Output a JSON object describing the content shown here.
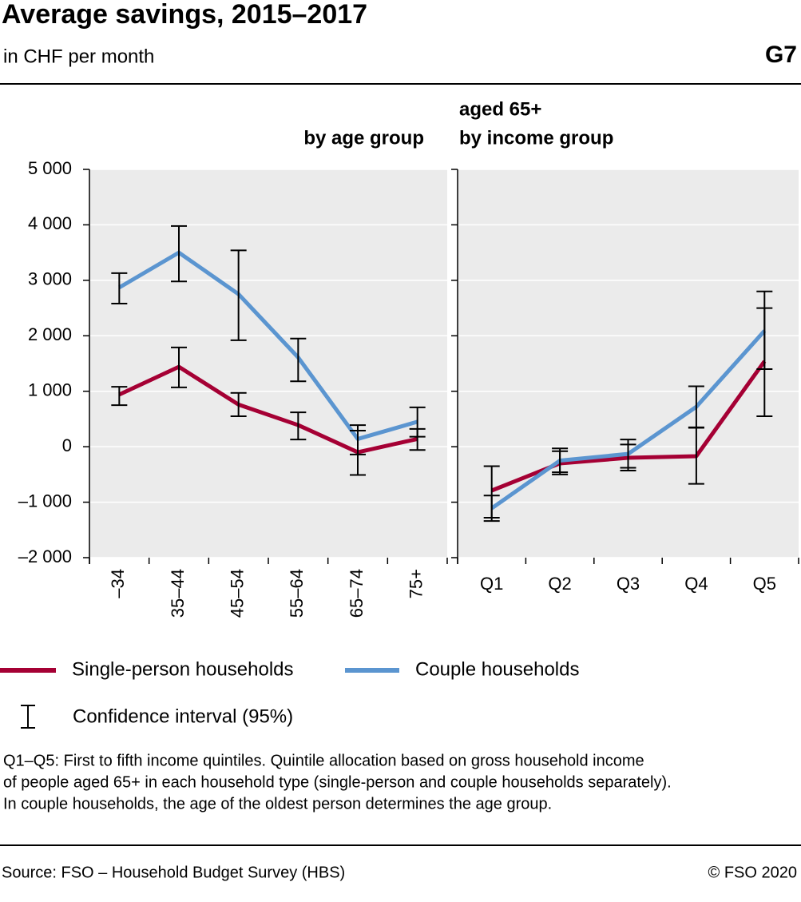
{
  "title": "Average savings, 2015–2017",
  "subtitle": "in CHF per month",
  "code": "G7",
  "ci_label": "Confidence interval (95%)",
  "notes": [
    "Q1–Q5: First to fifth income quintiles. Quintile allocation based on gross household income",
    "of people aged 65+ in each household type (single-person and couple households separately).",
    "In couple households, the age of the oldest person determines the age group."
  ],
  "source": "Source: FSO – Household Budget Survey (HBS)",
  "copyright": "© FSO 2020",
  "chart_data": [
    {
      "type": "line",
      "title_lines": [
        "by age group"
      ],
      "categories": [
        "–34",
        "35–44",
        "45–54",
        "55–64",
        "65–74",
        "75+"
      ],
      "ylim": [
        -2000,
        5000
      ],
      "yticks": [
        {
          "value": -2000,
          "label": "–2 000"
        },
        {
          "value": -1000,
          "label": "–1 000"
        },
        0,
        {
          "value": 1000,
          "label": "1 000"
        },
        {
          "value": 2000,
          "label": "2 000"
        },
        {
          "value": 3000,
          "label": "3 000"
        },
        {
          "value": 4000,
          "label": "4 000"
        },
        {
          "value": 5000,
          "label": "5 000"
        }
      ],
      "grid": true,
      "series": [
        {
          "name": "Single-person households",
          "color": "#a50034",
          "values": [
            940,
            1440,
            760,
            390,
            -100,
            140
          ],
          "ci_low": [
            750,
            1070,
            550,
            130,
            -510,
            -60
          ],
          "ci_high": [
            1080,
            1790,
            970,
            620,
            290,
            320
          ]
        },
        {
          "name": "Couple households",
          "color": "#5b95d0",
          "values": [
            2870,
            3500,
            2750,
            1610,
            140,
            450
          ],
          "ci_low": [
            2580,
            2980,
            1920,
            1180,
            -140,
            180
          ],
          "ci_high": [
            3130,
            3980,
            3540,
            1950,
            390,
            710
          ]
        }
      ]
    },
    {
      "type": "line",
      "title_lines": [
        "aged 65+",
        "by income group"
      ],
      "categories": [
        "Q1",
        "Q2",
        "Q3",
        "Q4",
        "Q5"
      ],
      "ylim": [
        -2000,
        5000
      ],
      "yticks": [
        -2000,
        -1000,
        0,
        1000,
        2000,
        3000,
        4000,
        5000
      ],
      "grid": true,
      "series": [
        {
          "name": "Single-person households",
          "color": "#a50034",
          "values": [
            -790,
            -300,
            -200,
            -170,
            1540
          ],
          "ci_low": [
            -1280,
            -500,
            -430,
            -670,
            550
          ],
          "ci_high": [
            -350,
            -30,
            130,
            350,
            2500
          ]
        },
        {
          "name": "Couple households",
          "color": "#5b95d0",
          "values": [
            -1110,
            -250,
            -130,
            720,
            2090
          ],
          "ci_low": [
            -1340,
            -460,
            -380,
            340,
            1400
          ],
          "ci_high": [
            -880,
            -80,
            40,
            1090,
            2800
          ]
        }
      ]
    }
  ]
}
